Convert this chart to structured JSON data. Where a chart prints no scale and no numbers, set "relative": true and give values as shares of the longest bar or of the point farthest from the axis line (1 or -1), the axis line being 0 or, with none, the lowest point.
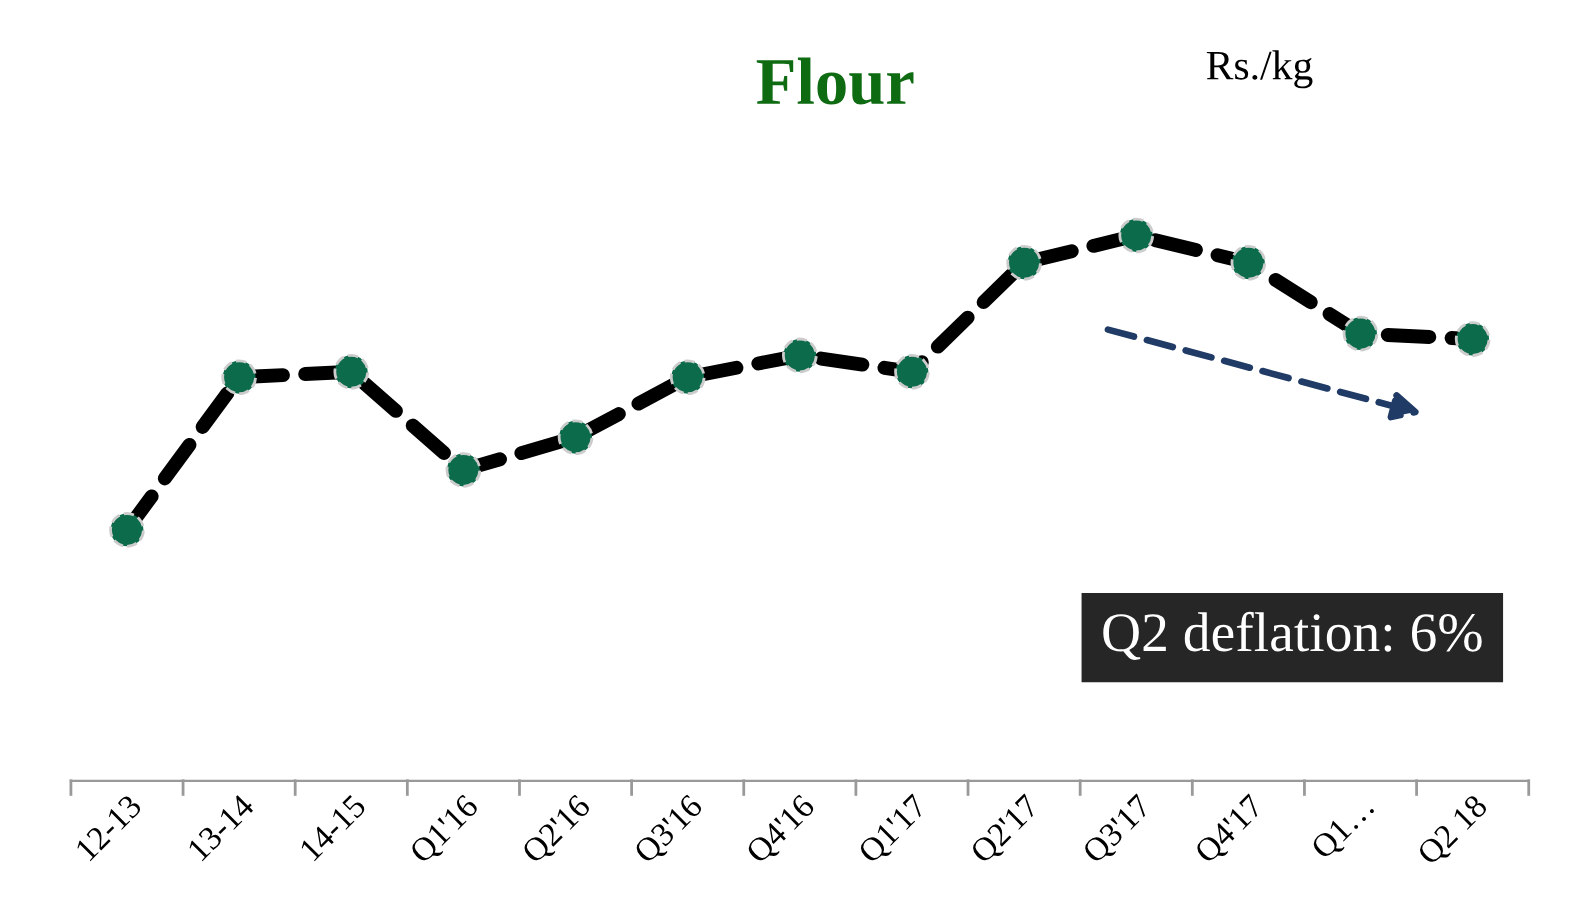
{
  "chart_data": {
    "type": "line",
    "title": "Flour",
    "relative": true,
    "categories": [
      "12-13",
      "13-14",
      "14-15",
      "Q1'16",
      "Q2'16",
      "Q3'16",
      "Q4'16",
      "Q1'17",
      "Q2'17",
      "Q3'17",
      "Q4'17",
      "Q1…",
      "Q2 18"
    ],
    "series": [
      {
        "color": "#000000",
        "colors": [
          "#0b6b4b",
          "#0b6b4b",
          "#0b6b4b",
          "#0b6b4b",
          "#0b6b4b",
          "#0b6b4b",
          "#0b6b4b",
          "#0b6b4b",
          "#0b6b4b",
          "#0b6b4b",
          "#0b6b4b",
          "#0b6b4b",
          "#0b6b4b"
        ],
        "values": [
          0.46,
          0.74,
          0.75,
          0.57,
          0.63,
          0.74,
          0.78,
          0.75,
          0.95,
          1,
          0.95,
          0.82,
          0.81
        ]
      }
    ],
    "marker": "circle",
    "line_style": "dashed",
    "grid": false,
    "legend": false,
    "tick_labels": "x",
    "annotations": [
      "Rs./kg",
      "Q2 deflation: 6%"
    ]
  }
}
